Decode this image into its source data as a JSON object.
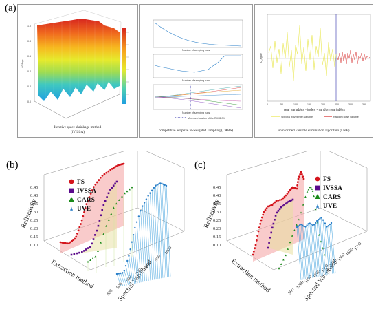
{
  "panels": {
    "a": {
      "label": "(a)",
      "left": {
        "caption_line1": "Iterative space shrinkage method",
        "caption_line2": "(iVISSA)",
        "ylabel": "Δ0.8pgr",
        "yticks": [
          "1.0",
          "0.8",
          "0.6",
          "0.4",
          "0.2",
          "0.0"
        ],
        "colorbar_ticks": [
          "",
          "",
          "",
          "",
          "",
          "",
          ""
        ]
      },
      "middle": {
        "caption": "competitive adaptive re-weighted sampling (CARS)",
        "sub1_xlabel": "Number of sampling runs",
        "sub2_xlabel": "Number of sampling runs",
        "sub3_xlabel": "Number of sampling runs",
        "legend_text": "Minimum location of the RMSECV"
      },
      "right": {
        "caption": "uninformed variable elimination algorithm (UVE)",
        "ylabel": "C_agrde",
        "xlabel": "real variables - index - random variables",
        "xticks": [
          "0",
          "50",
          "100",
          "150",
          "200",
          "250",
          "300",
          "350"
        ],
        "legend1": "Spectral wavelength variable",
        "legend2": "Random noise variable",
        "color1": "#e8e64a",
        "color2": "#d62a2a"
      }
    },
    "b": {
      "label": "(b)",
      "yaxis_title": "Reflectivity",
      "yticks": [
        "0.45",
        "0.40",
        "0.35",
        "0.30",
        "0.25",
        "0.20",
        "0.15",
        "0.10"
      ],
      "xaxis_title": "Spectral Waveband",
      "xticks": [
        "400",
        "500",
        "600",
        "700",
        "800",
        "900",
        "1000"
      ],
      "zaxis_title": "Extraction method",
      "legend": [
        {
          "name": "FS",
          "color": "#d4141c",
          "shape": "circle"
        },
        {
          "name": "IVSSA",
          "color": "#5a0a8c",
          "shape": "square"
        },
        {
          "name": "CARS",
          "color": "#1a8a1a",
          "shape": "triangle"
        },
        {
          "name": "UVE",
          "color": "#2a7fc8",
          "shape": "star"
        }
      ]
    },
    "c": {
      "label": "(c)",
      "yaxis_title": "Reflectivity",
      "yticks": [
        "0.45",
        "0.40",
        "0.35",
        "0.30",
        "0.25",
        "0.20",
        "0.15",
        "0.10"
      ],
      "xaxis_title": "Spectral Waveband",
      "xticks": [
        "900",
        "1000",
        "1100",
        "1200",
        "1300",
        "1400",
        "1500",
        "1600",
        "1700"
      ],
      "zaxis_title": "Extraction method",
      "legend": [
        {
          "name": "FS",
          "color": "#d4141c",
          "shape": "circle"
        },
        {
          "name": "IVSSA",
          "color": "#5a0a8c",
          "shape": "square"
        },
        {
          "name": "CARS",
          "color": "#1a8a1a",
          "shape": "triangle"
        },
        {
          "name": "UVE",
          "color": "#2a7fc8",
          "shape": "star"
        }
      ]
    }
  }
}
